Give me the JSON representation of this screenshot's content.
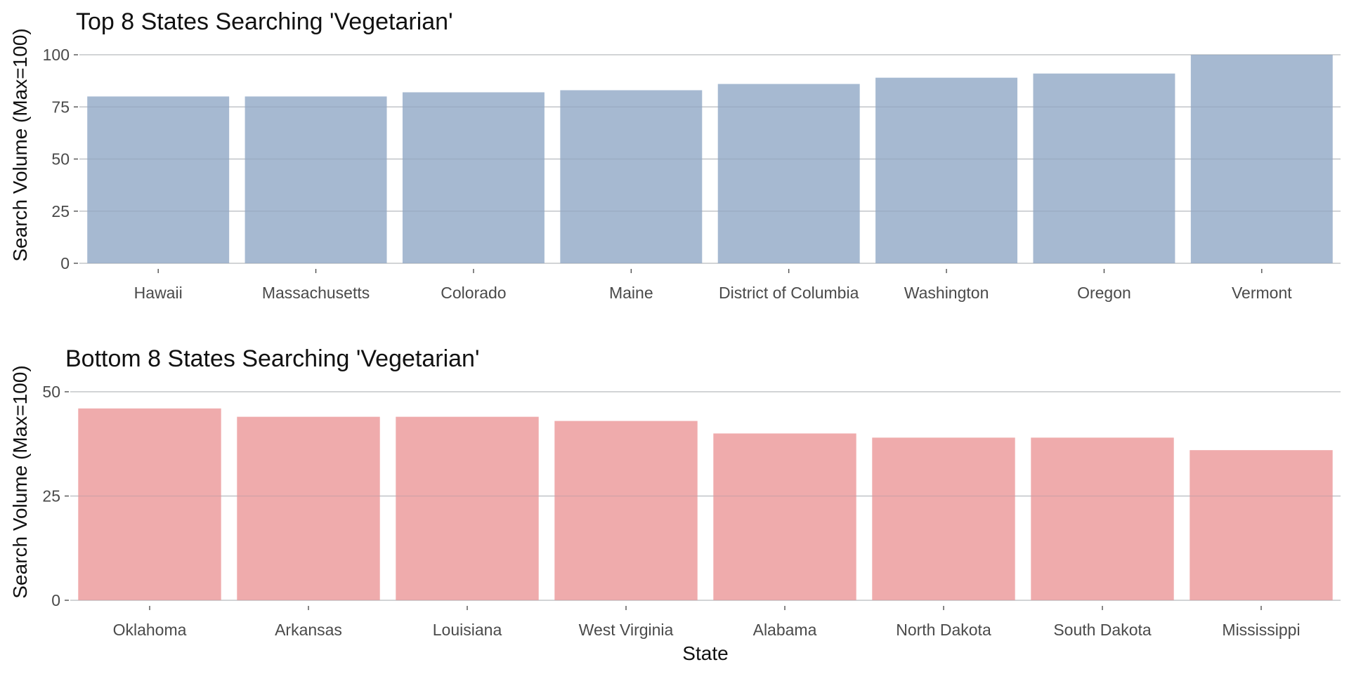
{
  "chart_data": [
    {
      "type": "bar",
      "title": "Top 8 States Searching 'Vegetarian'",
      "xlabel": "",
      "ylabel": "Search Volume (Max=100)",
      "categories": [
        "Hawaii",
        "Massachusetts",
        "Colorado",
        "Maine",
        "District of Columbia",
        "Washington",
        "Oregon",
        "Vermont"
      ],
      "values": [
        80,
        80,
        82,
        83,
        86,
        89,
        91,
        100
      ],
      "ylim": [
        0,
        100
      ],
      "yticks": [
        0,
        25,
        50,
        75,
        100
      ],
      "bar_color": "#a6b9d1",
      "grid": true
    },
    {
      "type": "bar",
      "title": "Bottom 8 States Searching 'Vegetarian'",
      "xlabel": "State",
      "ylabel": "Search Volume (Max=100)",
      "categories": [
        "Oklahoma",
        "Arkansas",
        "Louisiana",
        "West Virginia",
        "Alabama",
        "North Dakota",
        "South Dakota",
        "Mississippi"
      ],
      "values": [
        46,
        44,
        44,
        43,
        40,
        39,
        39,
        36
      ],
      "ylim": [
        0,
        50
      ],
      "yticks": [
        0,
        25,
        50
      ],
      "bar_color": "#efabac",
      "grid": true
    }
  ]
}
